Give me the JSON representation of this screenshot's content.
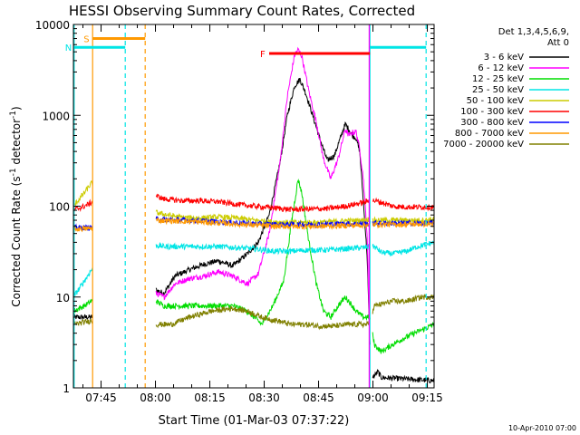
{
  "chart_data": {
    "type": "line",
    "title": "HESSI Observing Summary Count Rates, Corrected",
    "xlabel": "Start Time (01-Mar-03 07:37:22)",
    "ylabel_main": "Corrected Count Rate (s",
    "ylabel_sup": "-1",
    "ylabel_mid": " detector",
    "ylabel_end": ")",
    "footer": "10-Apr-2010 07:00",
    "x_unit": "minutes since 07:37:22",
    "xlim": [
      0,
      99.5
    ],
    "ylim": [
      1,
      10000
    ],
    "y_scale": "log",
    "x_ticks": [
      {
        "label": "07:45",
        "x": 7.63
      },
      {
        "label": "08:00",
        "x": 22.63
      },
      {
        "label": "08:15",
        "x": 37.63
      },
      {
        "label": "08:30",
        "x": 52.63
      },
      {
        "label": "08:45",
        "x": 67.63
      },
      {
        "label": "09:00",
        "x": 82.63
      },
      {
        "label": "09:15",
        "x": 97.63
      }
    ],
    "y_ticks": [
      {
        "label": "1",
        "value": 1
      },
      {
        "label": "10",
        "value": 10
      },
      {
        "label": "100",
        "value": 100
      },
      {
        "label": "1000",
        "value": 1000
      },
      {
        "label": "10000",
        "value": 10000
      }
    ],
    "legend": {
      "header": [
        "Det 1,3,4,5,6,9,",
        "Att 0"
      ],
      "placement": "right"
    },
    "gaps": [
      [
        5.3,
        22.8
      ],
      [
        81.8,
        82.6
      ]
    ],
    "series": [
      {
        "name": "3 - 6 keV",
        "color": "#000000",
        "points": [
          [
            0,
            6
          ],
          [
            5,
            6
          ],
          [
            22.8,
            12
          ],
          [
            25,
            11
          ],
          [
            28,
            17
          ],
          [
            32,
            20
          ],
          [
            36,
            23
          ],
          [
            40,
            25
          ],
          [
            44,
            22
          ],
          [
            48,
            30
          ],
          [
            51,
            40
          ],
          [
            54,
            80
          ],
          [
            57,
            300
          ],
          [
            59,
            1000
          ],
          [
            61,
            2100
          ],
          [
            62.5,
            2500
          ],
          [
            64,
            1800
          ],
          [
            66,
            1000
          ],
          [
            68,
            550
          ],
          [
            70,
            320
          ],
          [
            72,
            360
          ],
          [
            74,
            620
          ],
          [
            75,
            800
          ],
          [
            76,
            700
          ],
          [
            77,
            600
          ],
          [
            78,
            560
          ],
          [
            79,
            400
          ],
          [
            80,
            110
          ],
          [
            81,
            30
          ],
          [
            81.8,
            3
          ],
          [
            82.6,
            1.3
          ],
          [
            84,
            1.5
          ],
          [
            85,
            1.3
          ],
          [
            99.5,
            1.2
          ]
        ]
      },
      {
        "name": "6 - 12 keV",
        "color": "#ff00ff",
        "points": [
          [
            22.8,
            11
          ],
          [
            25,
            10
          ],
          [
            28,
            14
          ],
          [
            32,
            16
          ],
          [
            36,
            17
          ],
          [
            40,
            19
          ],
          [
            44,
            17
          ],
          [
            48,
            14
          ],
          [
            51,
            18
          ],
          [
            54,
            50
          ],
          [
            57,
            300
          ],
          [
            59,
            1600
          ],
          [
            61,
            4600
          ],
          [
            62,
            5300
          ],
          [
            63,
            4500
          ],
          [
            65,
            1800
          ],
          [
            67,
            850
          ],
          [
            69,
            330
          ],
          [
            71,
            200
          ],
          [
            73,
            330
          ],
          [
            75,
            700
          ],
          [
            76,
            600
          ],
          [
            77,
            650
          ],
          [
            78,
            660
          ],
          [
            79,
            420
          ],
          [
            80,
            200
          ],
          [
            81,
            50
          ],
          [
            81.8,
            3
          ]
        ]
      },
      {
        "name": "12 - 25 keV",
        "color": "#00dd00",
        "points": [
          [
            0,
            7
          ],
          [
            3,
            8
          ],
          [
            5,
            9
          ],
          [
            22.8,
            9
          ],
          [
            25,
            8
          ],
          [
            28,
            8
          ],
          [
            32,
            8
          ],
          [
            36,
            8
          ],
          [
            40,
            8
          ],
          [
            44,
            8
          ],
          [
            48,
            7
          ],
          [
            52,
            5
          ],
          [
            55,
            8
          ],
          [
            58,
            15
          ],
          [
            60,
            60
          ],
          [
            62,
            200
          ],
          [
            63,
            140
          ],
          [
            65,
            40
          ],
          [
            67,
            14
          ],
          [
            69,
            7
          ],
          [
            71,
            6
          ],
          [
            73,
            8
          ],
          [
            75,
            10
          ],
          [
            76,
            9
          ],
          [
            78,
            7
          ],
          [
            80,
            6
          ],
          [
            81.8,
            6
          ],
          [
            83,
            3
          ],
          [
            85,
            2.5
          ],
          [
            88,
            3
          ],
          [
            91,
            3.5
          ],
          [
            94,
            4
          ],
          [
            97,
            4.5
          ],
          [
            99.5,
            5
          ]
        ]
      },
      {
        "name": "25 - 50 keV",
        "color": "#00e5e5",
        "points": [
          [
            0,
            10
          ],
          [
            3,
            15
          ],
          [
            5,
            20
          ],
          [
            22.8,
            37
          ],
          [
            25,
            36
          ],
          [
            30,
            36
          ],
          [
            35,
            36
          ],
          [
            40,
            36
          ],
          [
            45,
            35
          ],
          [
            50,
            34
          ],
          [
            55,
            32
          ],
          [
            60,
            32
          ],
          [
            65,
            33
          ],
          [
            70,
            33
          ],
          [
            75,
            34
          ],
          [
            80,
            35
          ],
          [
            81.8,
            36
          ],
          [
            83,
            36
          ],
          [
            85,
            31
          ],
          [
            88,
            30
          ],
          [
            92,
            32
          ],
          [
            95,
            36
          ],
          [
            99.5,
            40
          ]
        ]
      },
      {
        "name": "50 - 100 keV",
        "color": "#cccc00",
        "points": [
          [
            0,
            100
          ],
          [
            3,
            140
          ],
          [
            5,
            180
          ],
          [
            22.8,
            85
          ],
          [
            26,
            80
          ],
          [
            30,
            75
          ],
          [
            35,
            74
          ],
          [
            40,
            76
          ],
          [
            45,
            74
          ],
          [
            50,
            70
          ],
          [
            55,
            67
          ],
          [
            60,
            66
          ],
          [
            65,
            66
          ],
          [
            70,
            67
          ],
          [
            75,
            69
          ],
          [
            80,
            70
          ],
          [
            81.8,
            72
          ],
          [
            83,
            70
          ],
          [
            88,
            70
          ],
          [
            92,
            70
          ],
          [
            96,
            70
          ],
          [
            99.5,
            72
          ]
        ]
      },
      {
        "name": "100 - 300 keV",
        "color": "#ff0000",
        "points": [
          [
            0,
            90
          ],
          [
            3,
            100
          ],
          [
            5,
            110
          ],
          [
            22.8,
            130
          ],
          [
            25,
            120
          ],
          [
            30,
            115
          ],
          [
            35,
            115
          ],
          [
            40,
            112
          ],
          [
            45,
            105
          ],
          [
            50,
            100
          ],
          [
            55,
            96
          ],
          [
            60,
            92
          ],
          [
            65,
            93
          ],
          [
            70,
            94
          ],
          [
            75,
            100
          ],
          [
            80,
            110
          ],
          [
            81.8,
            115
          ],
          [
            83,
            115
          ],
          [
            85,
            110
          ],
          [
            88,
            100
          ],
          [
            92,
            98
          ],
          [
            96,
            98
          ],
          [
            99.5,
            98
          ]
        ]
      },
      {
        "name": "300 - 800 keV",
        "color": "#0000ff",
        "points": [
          [
            0,
            58
          ],
          [
            5,
            58
          ],
          [
            22.8,
            72
          ],
          [
            27,
            71
          ],
          [
            32,
            70
          ],
          [
            38,
            68
          ],
          [
            44,
            66
          ],
          [
            50,
            64
          ],
          [
            56,
            63
          ],
          [
            62,
            63
          ],
          [
            68,
            63
          ],
          [
            74,
            64
          ],
          [
            80,
            64
          ],
          [
            81.8,
            64
          ],
          [
            83,
            65
          ],
          [
            90,
            65
          ],
          [
            99.5,
            65
          ]
        ]
      },
      {
        "name": "800 - 7000 keV",
        "color": "#ff9900",
        "points": [
          [
            0,
            56
          ],
          [
            5,
            57
          ],
          [
            22.8,
            70
          ],
          [
            27,
            69
          ],
          [
            32,
            68
          ],
          [
            38,
            66
          ],
          [
            44,
            64
          ],
          [
            50,
            62
          ],
          [
            56,
            60
          ],
          [
            62,
            60
          ],
          [
            68,
            60
          ],
          [
            74,
            61
          ],
          [
            80,
            62
          ],
          [
            81.8,
            62
          ],
          [
            83,
            63
          ],
          [
            90,
            63
          ],
          [
            99.5,
            64
          ]
        ]
      },
      {
        "name": "7000 - 20000 keV",
        "color": "#808000",
        "points": [
          [
            0,
            5
          ],
          [
            5,
            5.5
          ],
          [
            22.8,
            5
          ],
          [
            27,
            5
          ],
          [
            32,
            6
          ],
          [
            38,
            7
          ],
          [
            44,
            7.5
          ],
          [
            48,
            7
          ],
          [
            52,
            6
          ],
          [
            56,
            5.5
          ],
          [
            60,
            5
          ],
          [
            64,
            5
          ],
          [
            68,
            4.8
          ],
          [
            72,
            4.8
          ],
          [
            76,
            5
          ],
          [
            80,
            5
          ],
          [
            81.8,
            5
          ],
          [
            83,
            8
          ],
          [
            88,
            9
          ],
          [
            92,
            9
          ],
          [
            96,
            10
          ],
          [
            99.5,
            10
          ]
        ]
      }
    ],
    "vertical_lines": [
      {
        "x": 0.2,
        "color": "#00e5e5",
        "dashed": false
      },
      {
        "x": 14.3,
        "color": "#00e5e5",
        "dashed": true
      },
      {
        "x": 5.3,
        "color": "#ff9900",
        "dashed": false
      },
      {
        "x": 19.8,
        "color": "#ff9900",
        "dashed": true
      },
      {
        "x": 81.8,
        "color": "#00e5e5",
        "dashed": false
      },
      {
        "x": 97.3,
        "color": "#00e5e5",
        "dashed": true
      },
      {
        "x": 81.6,
        "color": "#ff00ff",
        "dashed": false
      }
    ],
    "bars": [
      {
        "label": "S",
        "color": "#ff9900",
        "x0": 5.3,
        "x1": 19.8,
        "y": 7000,
        "label_color": "#ff9900"
      },
      {
        "label": "N",
        "color": "#00e5e5",
        "x0": 0.2,
        "x1": 14.3,
        "y": 5600,
        "label_color": "#00e5e5"
      },
      {
        "label": "F",
        "color": "#ff0000",
        "x0": 54,
        "x1": 81.8,
        "y": 4800,
        "label_color": "#ff0000"
      },
      {
        "label": "",
        "color": "#00e5e5",
        "x0": 81.8,
        "x1": 97.3,
        "y": 5600,
        "label_color": "#00e5e5"
      }
    ],
    "grid": false
  }
}
